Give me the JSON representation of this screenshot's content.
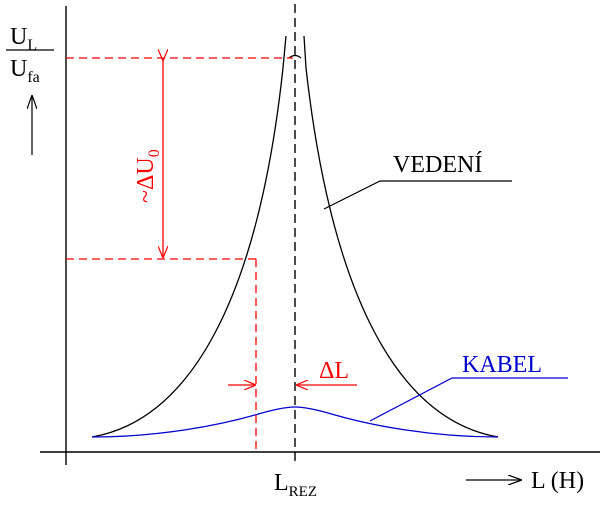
{
  "y_axis": {
    "numerator": "U",
    "numerator_sub": "L",
    "denominator": "U",
    "denominator_sub": "fa"
  },
  "x_axis": {
    "label": "L (H)"
  },
  "resonance_label": {
    "text": "L",
    "sub": "REZ"
  },
  "annotations": {
    "delta_u": "~ΔU",
    "delta_u_sub": "0",
    "delta_l": "ΔL"
  },
  "curves": {
    "line_name": "VEDENÍ",
    "cable_name": "KABEL"
  },
  "colors": {
    "axes": "#000000",
    "annotation": "#ff0000",
    "cable": "#0000cc"
  }
}
